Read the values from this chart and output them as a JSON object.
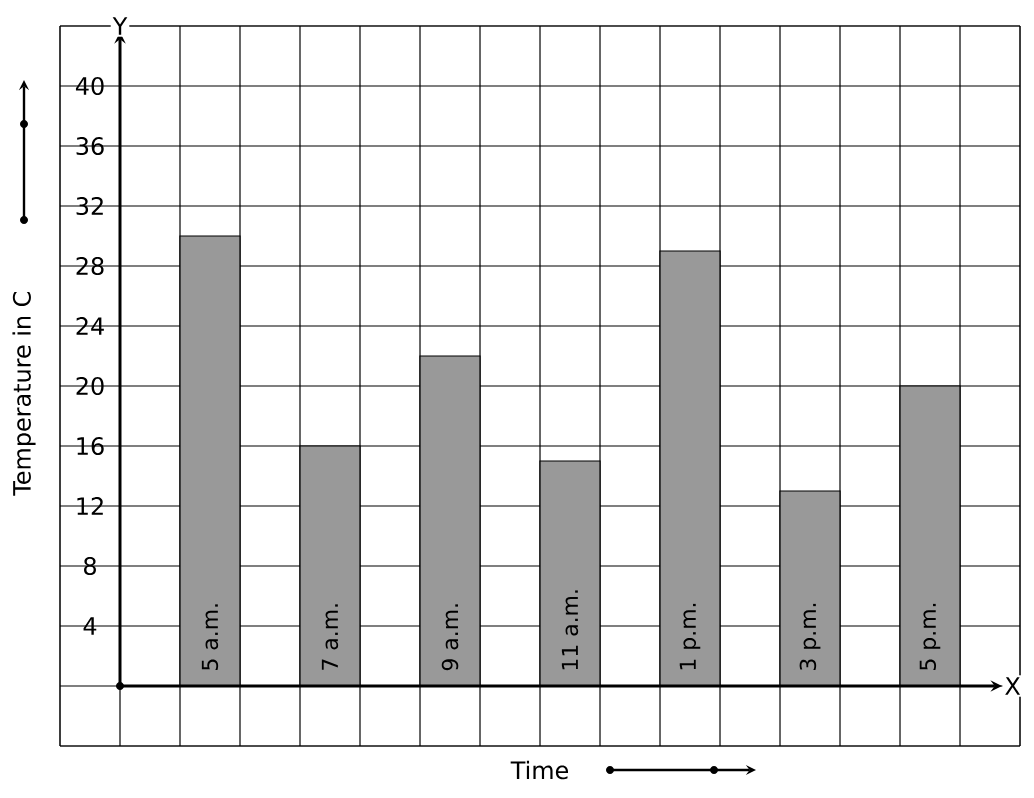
{
  "chart_data": {
    "type": "bar",
    "xlabel": "Time",
    "ylabel": "Temperature in C",
    "categories": [
      "5 a.m.",
      "7 a.m.",
      "9 a.m.",
      "11 a.m.",
      "1 p.m.",
      "3 p.m.",
      "5 p.m."
    ],
    "values": [
      30,
      16,
      22,
      15,
      29,
      13,
      20
    ],
    "color": "#999999",
    "ylim": [
      -4,
      44
    ],
    "yticks": [
      4,
      8,
      12,
      16,
      20,
      24,
      28,
      32,
      36,
      40
    ],
    "grid": true,
    "annotations": [
      "Y",
      "X"
    ]
  }
}
